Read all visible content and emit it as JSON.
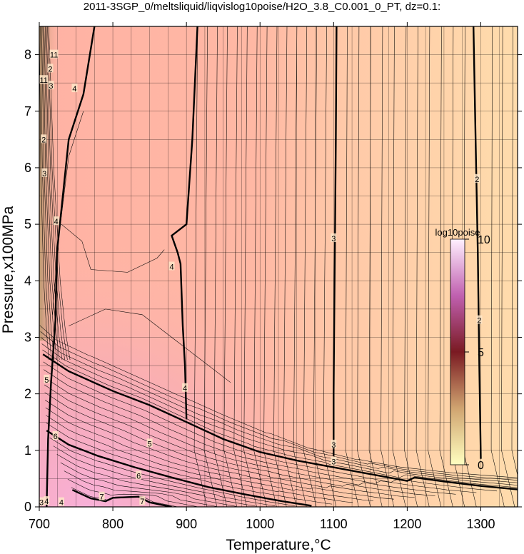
{
  "chart_data": {
    "type": "heatmap",
    "title": "2011-3SGP_0/meltsliquid/liqvislog10poise/H2O_3.8_C0.001_0_PT, dz=0.1:",
    "xlabel": "Temperature,°C",
    "ylabel": "Pressure,x100MPa",
    "xlim": [
      700,
      1350
    ],
    "ylim": [
      0,
      8.5
    ],
    "x_ticks": [
      700,
      800,
      900,
      1000,
      1100,
      1200,
      1300
    ],
    "y_ticks": [
      0,
      1,
      2,
      3,
      4,
      5,
      6,
      7,
      8
    ],
    "grid": true,
    "contour_interval": 0.1,
    "colorbar": {
      "label": "log10poise",
      "range": [
        0,
        10
      ],
      "ticks": [
        0,
        5,
        10
      ],
      "colors": [
        "#ffffc0",
        "#d4a878",
        "#7a1a22",
        "#c060b0",
        "#fff0ff"
      ]
    },
    "field_colors": {
      "low_T_high_P": "#ffb8a8",
      "high_T": "#ffd8a8",
      "low_T_low_P": "#f4a8c8"
    },
    "labeled_contours": [
      {
        "level": 2,
        "points": [
          [
            1300,
            0.85
          ],
          [
            1298,
            2.5
          ],
          [
            1296,
            4.5
          ],
          [
            1293,
            6.5
          ],
          [
            1290,
            8.5
          ]
        ]
      },
      {
        "level": 3,
        "points": [
          [
            1100,
            0.9
          ],
          [
            1100,
            2.0
          ],
          [
            1101,
            3.5
          ],
          [
            1102,
            5.0
          ],
          [
            1103,
            6.5
          ],
          [
            1104,
            8.5
          ]
        ]
      },
      {
        "level": 4,
        "points": [
          [
            900,
            1.55
          ],
          [
            898,
            2.5
          ],
          [
            895,
            3.2
          ],
          [
            892,
            4.3
          ],
          [
            888,
            4.5
          ],
          [
            880,
            4.8
          ],
          [
            900,
            5.0
          ],
          [
            908,
            6.5
          ],
          [
            915,
            8.5
          ]
        ]
      },
      {
        "level": 5,
        "points": [
          [
            705,
            2.7
          ],
          [
            740,
            2.4
          ],
          [
            800,
            2.05
          ],
          [
            850,
            1.8
          ],
          [
            900,
            1.5
          ],
          [
            950,
            1.2
          ],
          [
            1000,
            0.97
          ],
          [
            1050,
            0.82
          ],
          [
            1100,
            0.7
          ],
          [
            1150,
            0.58
          ],
          [
            1200,
            0.46
          ],
          [
            1210,
            0.52
          ],
          [
            1250,
            0.45
          ],
          [
            1300,
            0.37
          ],
          [
            1350,
            0.31
          ]
        ]
      },
      {
        "level": 6,
        "points": [
          [
            710,
            1.35
          ],
          [
            740,
            1.1
          ],
          [
            780,
            0.9
          ],
          [
            830,
            0.7
          ],
          [
            880,
            0.52
          ],
          [
            930,
            0.35
          ],
          [
            980,
            0.22
          ],
          [
            1030,
            0.1
          ],
          [
            1070,
            0.02
          ]
        ]
      },
      {
        "level": 7,
        "points": [
          [
            745,
            0.3
          ],
          [
            770,
            0.15
          ],
          [
            790,
            0.1
          ],
          [
            800,
            0.16
          ],
          [
            835,
            0.18
          ],
          [
            850,
            0.08
          ],
          [
            880,
            0.0
          ]
        ]
      }
    ],
    "contour_labels": [
      {
        "text": "2",
        "x": 1295,
        "y": 5.8
      },
      {
        "text": "2",
        "x": 1298,
        "y": 3.3
      },
      {
        "text": "3",
        "x": 1100,
        "y": 4.75
      },
      {
        "text": "3",
        "x": 1100,
        "y": 1.1
      },
      {
        "text": "3",
        "x": 1100,
        "y": 0.8
      },
      {
        "text": "4",
        "x": 880,
        "y": 4.25
      },
      {
        "text": "4",
        "x": 898,
        "y": 2.1
      },
      {
        "text": "4",
        "x": 748,
        "y": 7.4
      },
      {
        "text": "4",
        "x": 723,
        "y": 5.05
      },
      {
        "text": "5",
        "x": 850,
        "y": 1.12
      },
      {
        "text": "5",
        "x": 710,
        "y": 2.25
      },
      {
        "text": "6",
        "x": 835,
        "y": 0.55
      },
      {
        "text": "6",
        "x": 722,
        "y": 1.25
      },
      {
        "text": "7",
        "x": 785,
        "y": 0.18
      },
      {
        "text": "7",
        "x": 840,
        "y": 0.1
      },
      {
        "text": "11",
        "x": 720,
        "y": 8.0
      },
      {
        "text": "2",
        "x": 715,
        "y": 7.75
      },
      {
        "text": "11",
        "x": 706,
        "y": 7.55
      },
      {
        "text": "3",
        "x": 716,
        "y": 7.45
      },
      {
        "text": "2",
        "x": 706,
        "y": 6.5
      },
      {
        "text": "3",
        "x": 707,
        "y": 5.9
      },
      {
        "text": "4",
        "x": 710,
        "y": 0.1
      },
      {
        "text": "3",
        "x": 703,
        "y": 0.08
      },
      {
        "text": "4",
        "x": 730,
        "y": 0.08
      }
    ]
  }
}
